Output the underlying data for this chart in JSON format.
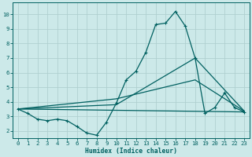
{
  "background_color": "#cce9e9",
  "grid_color": "#b0d0d0",
  "line_color": "#006060",
  "xlabel": "Humidex (Indice chaleur)",
  "xlim": [
    -0.5,
    23.5
  ],
  "ylim": [
    1.5,
    10.8
  ],
  "yticks": [
    2,
    3,
    4,
    5,
    6,
    7,
    8,
    9,
    10
  ],
  "xticks": [
    0,
    1,
    2,
    3,
    4,
    5,
    6,
    7,
    8,
    9,
    10,
    11,
    12,
    13,
    14,
    15,
    16,
    17,
    18,
    19,
    20,
    21,
    22,
    23
  ],
  "line1_x": [
    0,
    1,
    2,
    3,
    4,
    5,
    6,
    7,
    8,
    9,
    10,
    11,
    12,
    13,
    14,
    15,
    16,
    17,
    18,
    19,
    20,
    21,
    22,
    23
  ],
  "line1_y": [
    3.5,
    3.2,
    2.8,
    2.7,
    2.8,
    2.7,
    2.3,
    1.85,
    1.7,
    2.6,
    3.9,
    5.5,
    6.1,
    7.4,
    9.3,
    9.4,
    10.2,
    9.2,
    7.0,
    3.2,
    3.6,
    4.6,
    3.6,
    3.3
  ],
  "line2_x": [
    0,
    23
  ],
  "line2_y": [
    3.5,
    3.3
  ],
  "line3_x": [
    0,
    10,
    18,
    23
  ],
  "line3_y": [
    3.5,
    3.8,
    7.0,
    3.35
  ],
  "line4_x": [
    0,
    10,
    18,
    23
  ],
  "line4_y": [
    3.5,
    4.2,
    5.5,
    3.35
  ]
}
